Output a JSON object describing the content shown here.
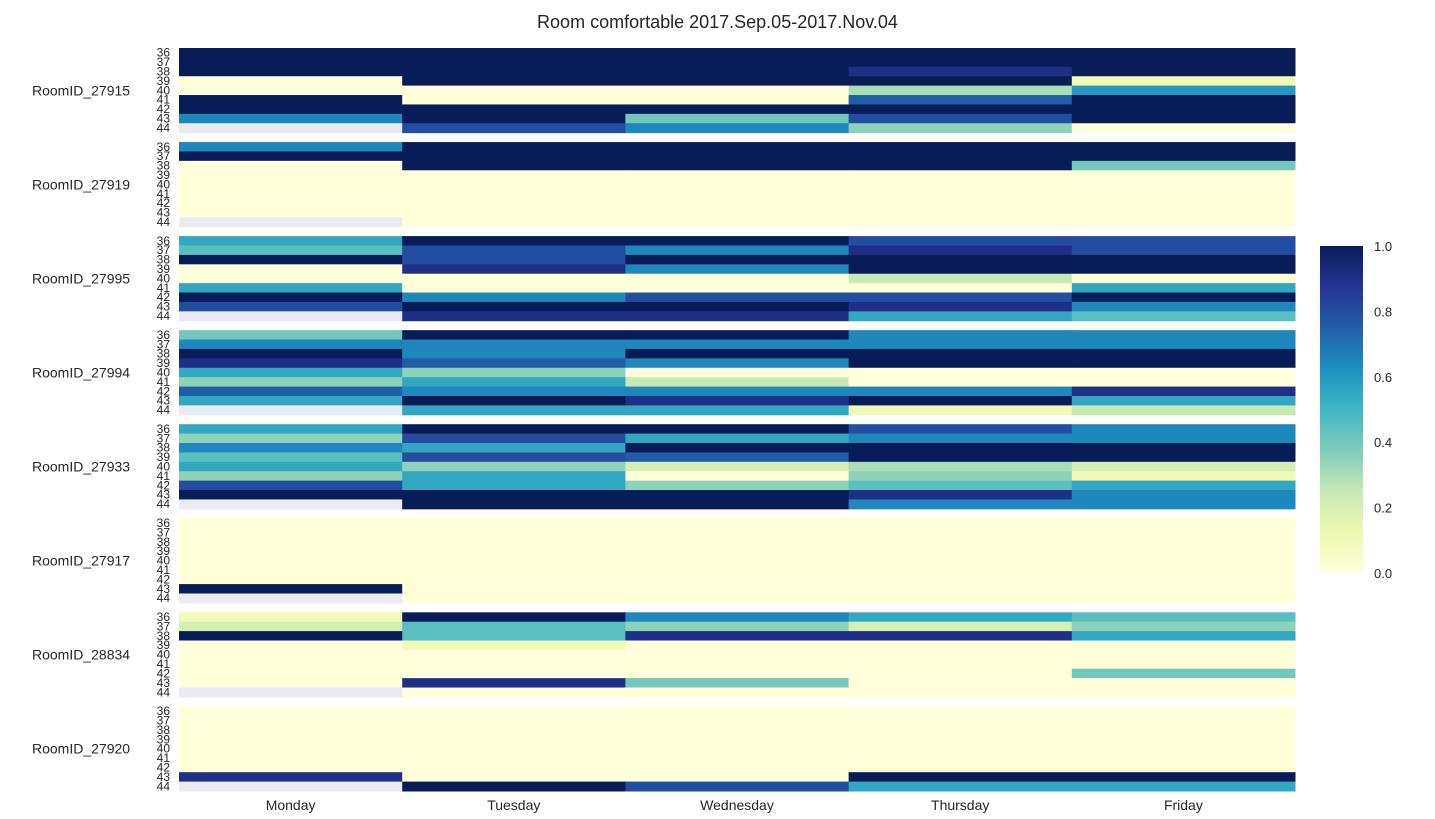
{
  "chart_data": {
    "type": "heatmap",
    "title": "Room comfortable  2017.Sep.05-2017.Nov.04",
    "columns": [
      "Monday",
      "Tuesday",
      "Wednesday",
      "Thursday",
      "Friday"
    ],
    "hours": [
      "36",
      "37",
      "38",
      "39",
      "40",
      "41",
      "42",
      "43",
      "44"
    ],
    "colorscale": "YlGnBu",
    "vmin": 0.0,
    "vmax": 1.0,
    "colorbar_ticks": [
      "0.0",
      "0.2",
      "0.4",
      "0.6",
      "0.8",
      "1.0"
    ],
    "missing_color": "#eaeaf2",
    "rooms": [
      {
        "name": "RoomID_27915",
        "values": [
          [
            1.0,
            1.0,
            1.0,
            1.0,
            1.0
          ],
          [
            1.0,
            1.0,
            1.0,
            1.0,
            1.0
          ],
          [
            1.0,
            1.0,
            1.0,
            0.9,
            1.0
          ],
          [
            0.0,
            1.0,
            1.0,
            1.0,
            0.1
          ],
          [
            0.0,
            0.0,
            0.0,
            0.3,
            0.6
          ],
          [
            1.0,
            0.0,
            0.0,
            0.75,
            1.0
          ],
          [
            1.0,
            1.0,
            1.0,
            1.0,
            1.0
          ],
          [
            0.65,
            1.0,
            0.4,
            0.8,
            1.0
          ],
          [
            null,
            0.8,
            0.65,
            0.35,
            0.0
          ]
        ]
      },
      {
        "name": "RoomID_27919",
        "values": [
          [
            0.65,
            1.0,
            1.0,
            1.0,
            1.0
          ],
          [
            1.0,
            1.0,
            1.0,
            1.0,
            1.0
          ],
          [
            0.0,
            1.0,
            1.0,
            1.0,
            0.4
          ],
          [
            0.0,
            0.0,
            0.0,
            0.0,
            0.0
          ],
          [
            0.0,
            0.0,
            0.0,
            0.0,
            0.0
          ],
          [
            0.0,
            0.0,
            0.0,
            0.0,
            0.0
          ],
          [
            0.0,
            0.0,
            0.0,
            0.0,
            0.0
          ],
          [
            0.0,
            0.0,
            0.0,
            0.0,
            0.0
          ],
          [
            null,
            0.0,
            0.0,
            0.0,
            0.0
          ]
        ]
      },
      {
        "name": "RoomID_27995",
        "values": [
          [
            0.55,
            1.0,
            1.0,
            0.8,
            0.8
          ],
          [
            0.45,
            0.8,
            0.65,
            0.9,
            0.8
          ],
          [
            1.0,
            0.8,
            1.0,
            1.0,
            1.0
          ],
          [
            0.0,
            0.9,
            0.65,
            1.0,
            1.0
          ],
          [
            0.0,
            0.0,
            0.0,
            0.25,
            0.0
          ],
          [
            0.55,
            0.0,
            0.0,
            0.0,
            0.55
          ],
          [
            1.0,
            0.65,
            0.8,
            0.8,
            1.0
          ],
          [
            0.8,
            1.0,
            1.0,
            0.9,
            0.65
          ],
          [
            null,
            0.9,
            0.9,
            0.55,
            0.45
          ]
        ]
      },
      {
        "name": "RoomID_27994",
        "values": [
          [
            0.4,
            1.0,
            1.0,
            0.65,
            0.65
          ],
          [
            0.65,
            0.65,
            0.65,
            0.65,
            0.65
          ],
          [
            1.0,
            0.65,
            1.0,
            1.0,
            1.0
          ],
          [
            0.9,
            0.75,
            0.65,
            1.0,
            1.0
          ],
          [
            0.55,
            0.35,
            0.0,
            0.0,
            0.0
          ],
          [
            0.35,
            0.55,
            0.25,
            0.0,
            0.0
          ],
          [
            0.75,
            0.65,
            0.65,
            0.65,
            0.9
          ],
          [
            0.55,
            1.0,
            0.9,
            1.0,
            0.55
          ],
          [
            null,
            0.55,
            0.55,
            0.1,
            0.25
          ]
        ]
      },
      {
        "name": "RoomID_27933",
        "values": [
          [
            0.55,
            1.0,
            1.0,
            0.8,
            0.65
          ],
          [
            0.35,
            0.8,
            0.55,
            0.65,
            0.65
          ],
          [
            0.65,
            0.55,
            1.0,
            1.0,
            1.0
          ],
          [
            0.45,
            0.8,
            0.75,
            1.0,
            1.0
          ],
          [
            0.55,
            0.35,
            0.2,
            0.3,
            0.2
          ],
          [
            0.35,
            0.55,
            0.0,
            0.35,
            0.1
          ],
          [
            0.8,
            0.55,
            0.35,
            0.45,
            0.55
          ],
          [
            1.0,
            1.0,
            1.0,
            0.9,
            0.65
          ],
          [
            null,
            1.0,
            1.0,
            0.65,
            0.65
          ]
        ]
      },
      {
        "name": "RoomID_27917",
        "values": [
          [
            0.0,
            0.0,
            0.0,
            0.0,
            0.0
          ],
          [
            0.0,
            0.0,
            0.0,
            0.0,
            0.0
          ],
          [
            0.0,
            0.0,
            0.0,
            0.0,
            0.0
          ],
          [
            0.0,
            0.0,
            0.0,
            0.0,
            0.0
          ],
          [
            0.0,
            0.0,
            0.0,
            0.0,
            0.0
          ],
          [
            0.0,
            0.0,
            0.0,
            0.0,
            0.0
          ],
          [
            0.0,
            0.0,
            0.0,
            0.0,
            0.0
          ],
          [
            1.0,
            0.0,
            0.0,
            0.0,
            0.0
          ],
          [
            null,
            0.0,
            0.0,
            0.0,
            0.0
          ]
        ]
      },
      {
        "name": "RoomID_28834",
        "values": [
          [
            0.1,
            1.0,
            0.65,
            0.55,
            0.45
          ],
          [
            0.2,
            0.45,
            0.35,
            0.2,
            0.35
          ],
          [
            1.0,
            0.45,
            0.9,
            0.9,
            0.55
          ],
          [
            0.0,
            0.1,
            0.0,
            0.0,
            0.0
          ],
          [
            0.0,
            0.0,
            0.0,
            0.0,
            0.0
          ],
          [
            0.0,
            0.0,
            0.0,
            0.0,
            0.0
          ],
          [
            0.0,
            0.0,
            0.0,
            0.0,
            0.4
          ],
          [
            0.0,
            0.9,
            0.4,
            0.0,
            0.0
          ],
          [
            null,
            0.0,
            0.0,
            0.0,
            0.0
          ]
        ]
      },
      {
        "name": "RoomID_27920",
        "values": [
          [
            0.0,
            0.0,
            0.0,
            0.0,
            0.0
          ],
          [
            0.0,
            0.0,
            0.0,
            0.0,
            0.0
          ],
          [
            0.0,
            0.0,
            0.0,
            0.0,
            0.0
          ],
          [
            0.0,
            0.0,
            0.0,
            0.0,
            0.0
          ],
          [
            0.0,
            0.0,
            0.0,
            0.0,
            0.0
          ],
          [
            0.0,
            0.0,
            0.0,
            0.0,
            0.0
          ],
          [
            0.0,
            0.0,
            0.0,
            0.0,
            0.0
          ],
          [
            0.9,
            0.0,
            0.0,
            1.0,
            1.0
          ],
          [
            null,
            1.0,
            0.8,
            0.55,
            0.55
          ]
        ]
      }
    ]
  }
}
